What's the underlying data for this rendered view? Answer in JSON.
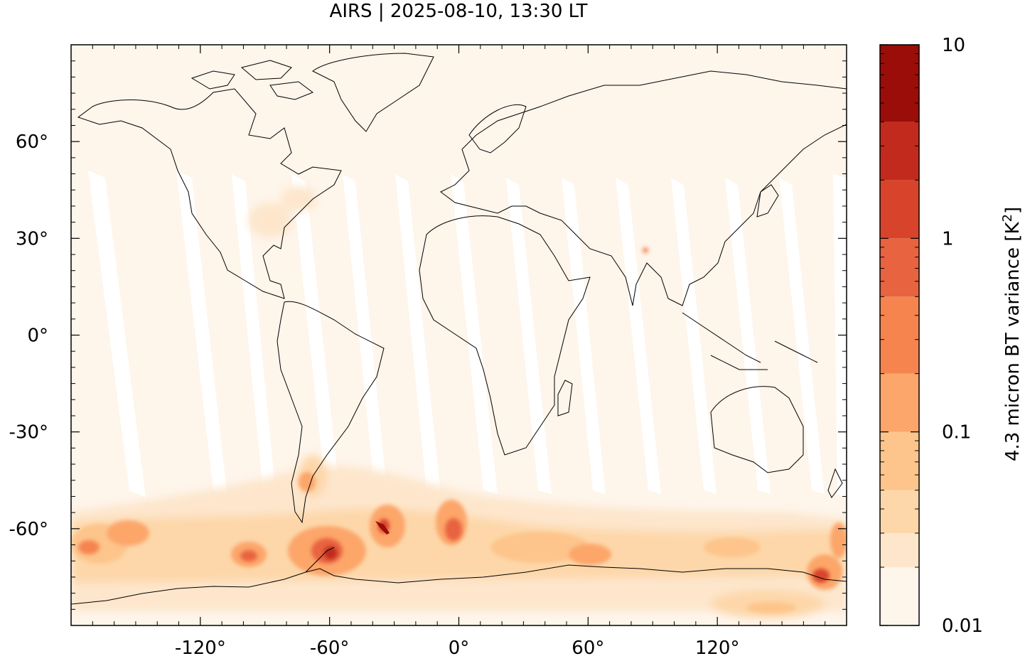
{
  "title": "AIRS | 2025-08-10, 13:30 LT",
  "map": {
    "projection": "plate-carree",
    "lon_range": [
      -180,
      180
    ],
    "lat_range": [
      -90,
      90
    ],
    "x_ticks": [
      {
        "value": -120,
        "label": "-120°"
      },
      {
        "value": -60,
        "label": "-60°"
      },
      {
        "value": 0,
        "label": "0°"
      },
      {
        "value": 60,
        "label": "60°"
      },
      {
        "value": 120,
        "label": "120°"
      }
    ],
    "y_ticks": [
      {
        "value": 60,
        "label": "60°"
      },
      {
        "value": 30,
        "label": "30°"
      },
      {
        "value": 0,
        "label": "0°"
      },
      {
        "value": -30,
        "label": "-30°"
      },
      {
        "value": -60,
        "label": "-60°"
      }
    ],
    "background_color": "#fef5eb",
    "gap_color": "#ffffff",
    "coastline_color": "#000000"
  },
  "colorbar": {
    "label_prefix": "4.3 micron BT variance [K",
    "label_sup": "2",
    "label_suffix": "]",
    "scale": "log",
    "range": [
      0.01,
      10
    ],
    "ticks": [
      {
        "value": 10,
        "label": "10"
      },
      {
        "value": 1,
        "label": "1"
      },
      {
        "value": 0.1,
        "label": "0.1"
      },
      {
        "value": 0.01,
        "label": "0.01"
      }
    ],
    "levels": [
      0.01,
      0.02,
      0.03,
      0.05,
      0.1,
      0.2,
      0.5,
      1,
      2,
      4,
      10
    ],
    "colors": [
      "#fef5eb",
      "#fde6cc",
      "#fdd7a9",
      "#fdc58b",
      "#fca66b",
      "#f5844f",
      "#e8633f",
      "#d8442b",
      "#c12a1c",
      "#9a0d09"
    ]
  }
}
